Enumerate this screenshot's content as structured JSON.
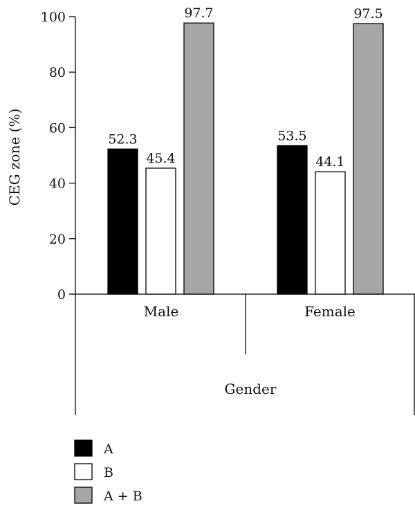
{
  "chart_data": {
    "type": "bar",
    "categories": [
      "Male",
      "Female"
    ],
    "series": [
      {
        "name": "A",
        "values": [
          52.3,
          53.5
        ],
        "color": "#000000"
      },
      {
        "name": "B",
        "values": [
          45.4,
          44.1
        ],
        "color": "#ffffff"
      },
      {
        "name": "A + B",
        "values": [
          97.7,
          97.5
        ],
        "color": "#a6a6a6"
      }
    ],
    "data_labels": [
      [
        "52.3",
        "53.5"
      ],
      [
        "45.4",
        "44.1"
      ],
      [
        "97.7",
        "97.5"
      ]
    ],
    "title": "",
    "xlabel": "Gender",
    "ylabel": "CEG zone (%)",
    "ylim": [
      0,
      100
    ],
    "yticks": [
      0,
      20,
      40,
      60,
      80,
      100
    ],
    "grid": false,
    "legend_position": "bottom-left"
  }
}
